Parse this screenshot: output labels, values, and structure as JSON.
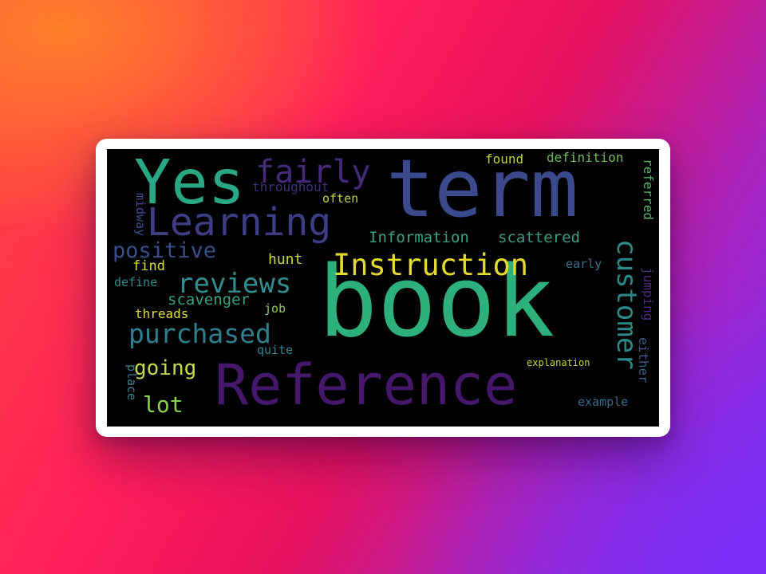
{
  "word_cloud": {
    "words": [
      {
        "text": "book",
        "color": "#2db07c"
      },
      {
        "text": "term",
        "color": "#3b4a8c"
      },
      {
        "text": "Reference",
        "color": "#46186b"
      },
      {
        "text": "Yes",
        "color": "#2aa884"
      },
      {
        "text": "Learning",
        "color": "#3f3d86"
      },
      {
        "text": "fairly",
        "color": "#462a7c"
      },
      {
        "text": "Instruction",
        "color": "#e2da2c"
      },
      {
        "text": "reviews",
        "color": "#2f8f8e"
      },
      {
        "text": "purchased",
        "color": "#2f7f8d"
      },
      {
        "text": "customer",
        "color": "#2a8a8a"
      },
      {
        "text": "positive",
        "color": "#3a4f8a"
      },
      {
        "text": "going",
        "color": "#c8d94a"
      },
      {
        "text": "lot",
        "color": "#8bd04f"
      },
      {
        "text": "Information",
        "color": "#38a27f"
      },
      {
        "text": "scattered",
        "color": "#3f9a86"
      },
      {
        "text": "scavenger",
        "color": "#35a283"
      },
      {
        "text": "hunt",
        "color": "#c9da3c"
      },
      {
        "text": "throughout",
        "color": "#3f2f78"
      },
      {
        "text": "often",
        "color": "#b8d641"
      },
      {
        "text": "found",
        "color": "#b7d646"
      },
      {
        "text": "definition",
        "color": "#6fbc5c"
      },
      {
        "text": "referred",
        "color": "#5ab46a"
      },
      {
        "text": "find",
        "color": "#d6df3a"
      },
      {
        "text": "define",
        "color": "#2f8a8b"
      },
      {
        "text": "threads",
        "color": "#e0dc32"
      },
      {
        "text": "job",
        "color": "#8fc65c"
      },
      {
        "text": "quite",
        "color": "#3a7e8c"
      },
      {
        "text": "early",
        "color": "#3a6f8c"
      },
      {
        "text": "jumping",
        "color": "#4a2c7a"
      },
      {
        "text": "either",
        "color": "#3f5a8a"
      },
      {
        "text": "explanation",
        "color": "#c5d63c"
      },
      {
        "text": "example",
        "color": "#356b8c"
      },
      {
        "text": "place",
        "color": "#3f7e8a"
      },
      {
        "text": "midway",
        "color": "#3a4e88"
      }
    ]
  }
}
